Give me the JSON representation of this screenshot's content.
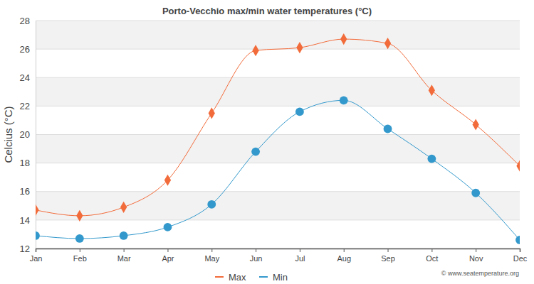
{
  "chart_data": {
    "type": "line",
    "title": "Porto-Vecchio max/min water temperatures (°C)",
    "y_label": "Celcius (°C)",
    "annotations": [
      "© www.seatemperature.org"
    ],
    "categories": [
      "Jan",
      "Feb",
      "Mar",
      "Apr",
      "May",
      "Jun",
      "Jul",
      "Aug",
      "Sep",
      "Oct",
      "Nov",
      "Dec"
    ],
    "series": [
      {
        "name": "Max",
        "color": "#f26b3a",
        "marker": "diamond",
        "values": [
          14.7,
          14.3,
          14.9,
          16.8,
          21.5,
          25.9,
          26.1,
          26.7,
          26.4,
          23.1,
          20.7,
          17.8
        ]
      },
      {
        "name": "Min",
        "color": "#3399cc",
        "marker": "circle",
        "values": [
          12.9,
          12.7,
          12.9,
          13.5,
          15.1,
          18.8,
          21.6,
          22.4,
          20.4,
          18.3,
          15.9,
          12.6
        ]
      }
    ],
    "ylim": [
      12,
      28
    ],
    "yticks": [
      12,
      14,
      16,
      18,
      20,
      22,
      24,
      26,
      28
    ],
    "grid": true,
    "legend": "bottom"
  }
}
